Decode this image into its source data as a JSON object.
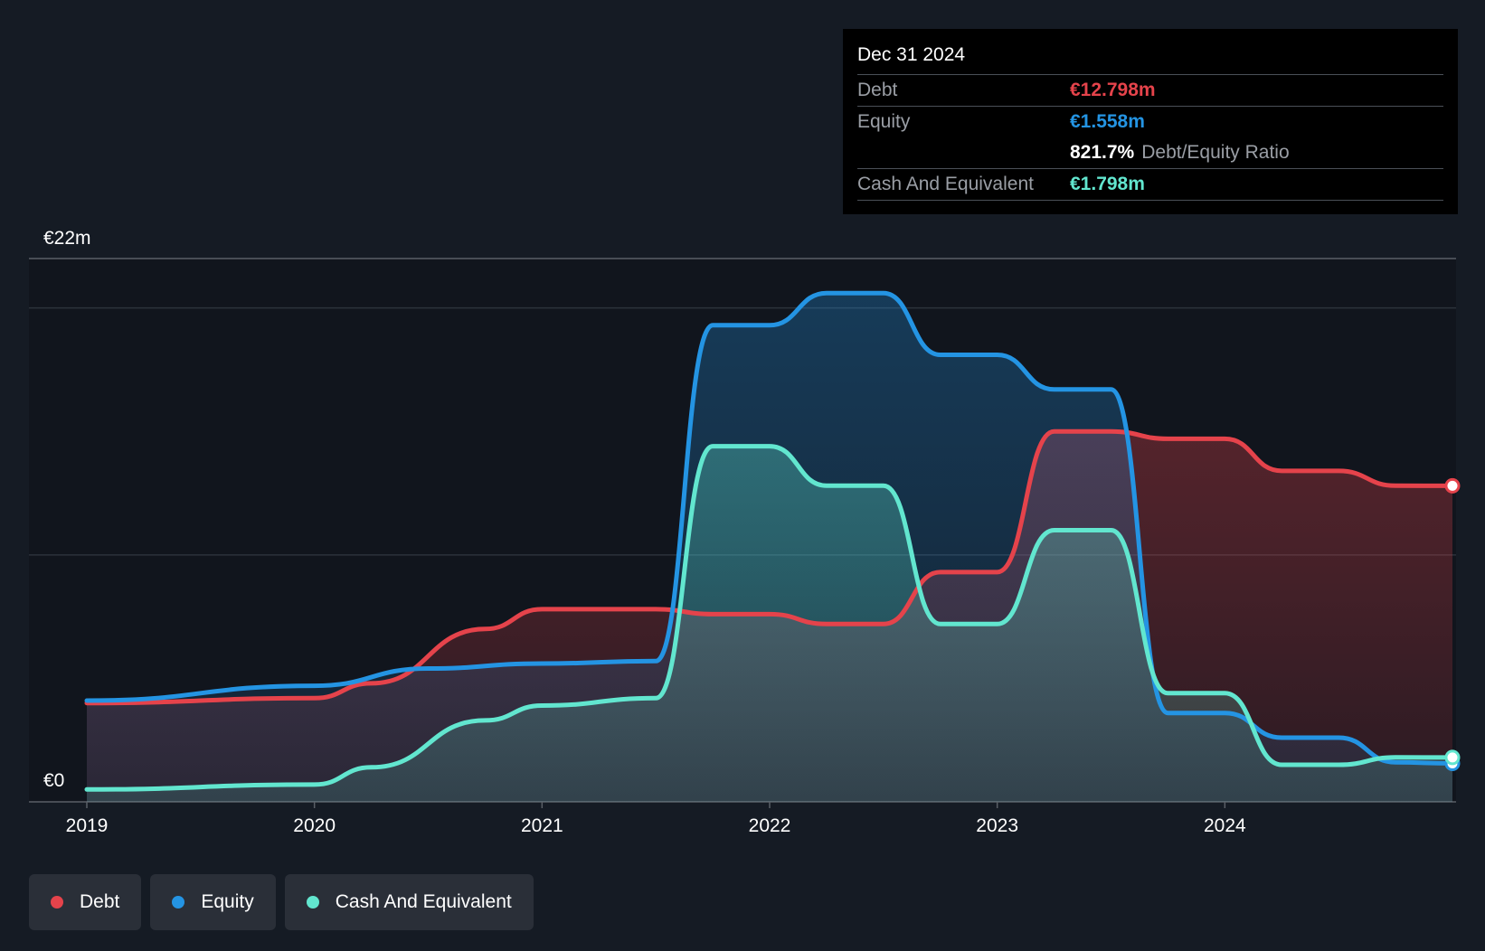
{
  "tooltip": {
    "date": "Dec 31 2024",
    "debt_label": "Debt",
    "debt_value": "€12.798m",
    "equity_label": "Equity",
    "equity_value": "€1.558m",
    "ratio_value": "821.7%",
    "ratio_label": "Debt/Equity Ratio",
    "cash_label": "Cash And Equivalent",
    "cash_value": "€1.798m"
  },
  "legend": {
    "debt": "Debt",
    "equity": "Equity",
    "cash": "Cash And Equivalent"
  },
  "colors": {
    "debt": "#e5434b",
    "equity": "#2494e3",
    "cash": "#62e6cf",
    "background": "#151b24"
  },
  "chart_data": {
    "type": "area",
    "ylabel_top": "€22m",
    "ylabel_bottom": "€0",
    "ylim": [
      0,
      22
    ],
    "x_ticks": [
      "2019",
      "2020",
      "2021",
      "2022",
      "2023",
      "2024"
    ],
    "grid": true,
    "series": [
      {
        "name": "Debt",
        "points": [
          [
            2019.0,
            4.0
          ],
          [
            2020.0,
            4.2
          ],
          [
            2020.25,
            4.8
          ],
          [
            2020.75,
            7.0
          ],
          [
            2021.0,
            7.8
          ],
          [
            2021.5,
            7.8
          ],
          [
            2021.75,
            7.6
          ],
          [
            2022.0,
            7.6
          ],
          [
            2022.25,
            7.2
          ],
          [
            2022.5,
            7.2
          ],
          [
            2022.75,
            9.3
          ],
          [
            2023.0,
            9.3
          ],
          [
            2023.25,
            15.0
          ],
          [
            2023.5,
            15.0
          ],
          [
            2023.75,
            14.7
          ],
          [
            2024.0,
            14.7
          ],
          [
            2024.25,
            13.4
          ],
          [
            2024.5,
            13.4
          ],
          [
            2024.75,
            12.8
          ],
          [
            2025.0,
            12.798
          ]
        ]
      },
      {
        "name": "Equity",
        "points": [
          [
            2019.0,
            4.1
          ],
          [
            2020.0,
            4.7
          ],
          [
            2020.5,
            5.4
          ],
          [
            2021.0,
            5.6
          ],
          [
            2021.5,
            5.7
          ],
          [
            2021.75,
            19.3
          ],
          [
            2022.0,
            19.3
          ],
          [
            2022.25,
            20.6
          ],
          [
            2022.5,
            20.6
          ],
          [
            2022.75,
            18.1
          ],
          [
            2023.0,
            18.1
          ],
          [
            2023.25,
            16.7
          ],
          [
            2023.5,
            16.7
          ],
          [
            2023.75,
            3.6
          ],
          [
            2024.0,
            3.6
          ],
          [
            2024.25,
            2.6
          ],
          [
            2024.5,
            2.6
          ],
          [
            2024.75,
            1.6
          ],
          [
            2025.0,
            1.558
          ]
        ]
      },
      {
        "name": "Cash And Equivalent",
        "points": [
          [
            2019.0,
            0.5
          ],
          [
            2020.0,
            0.7
          ],
          [
            2020.25,
            1.4
          ],
          [
            2020.75,
            3.3
          ],
          [
            2021.0,
            3.9
          ],
          [
            2021.5,
            4.2
          ],
          [
            2021.75,
            14.4
          ],
          [
            2022.0,
            14.4
          ],
          [
            2022.25,
            12.8
          ],
          [
            2022.5,
            12.8
          ],
          [
            2022.75,
            7.2
          ],
          [
            2023.0,
            7.2
          ],
          [
            2023.25,
            11.0
          ],
          [
            2023.5,
            11.0
          ],
          [
            2023.75,
            4.4
          ],
          [
            2024.0,
            4.4
          ],
          [
            2024.25,
            1.5
          ],
          [
            2024.5,
            1.5
          ],
          [
            2024.75,
            1.8
          ],
          [
            2025.0,
            1.798
          ]
        ]
      }
    ]
  }
}
